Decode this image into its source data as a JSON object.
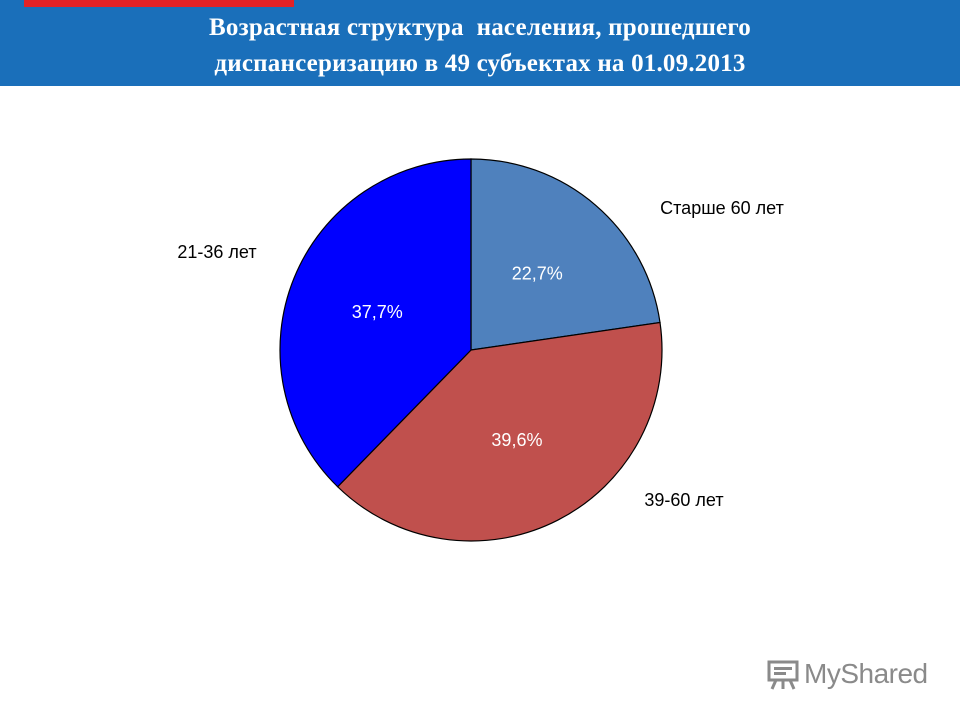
{
  "slide": {
    "title_line1": "Возрастная структура  населения, прошедшего",
    "title_line2": "диспансеризацию в 49 субъектах на 01.09.2013"
  },
  "colors": {
    "header": "#1a6fba",
    "accent": "#e32227"
  },
  "chart_data": {
    "type": "pie",
    "start": "12 o'clock, clockwise",
    "slices": [
      {
        "category": "Старше 60 лет",
        "value": 22.7,
        "label": "22,7%",
        "color": "#4f81bd"
      },
      {
        "category": "39-60 лет",
        "value": 39.6,
        "label": "39,6%",
        "color": "#c0504d"
      },
      {
        "category": "21-36 лет",
        "value": 37.7,
        "label": "37,7%",
        "color": "#0000ff"
      }
    ]
  },
  "watermark": {
    "text": "MyShared",
    "icon": "presentation-board-icon"
  }
}
